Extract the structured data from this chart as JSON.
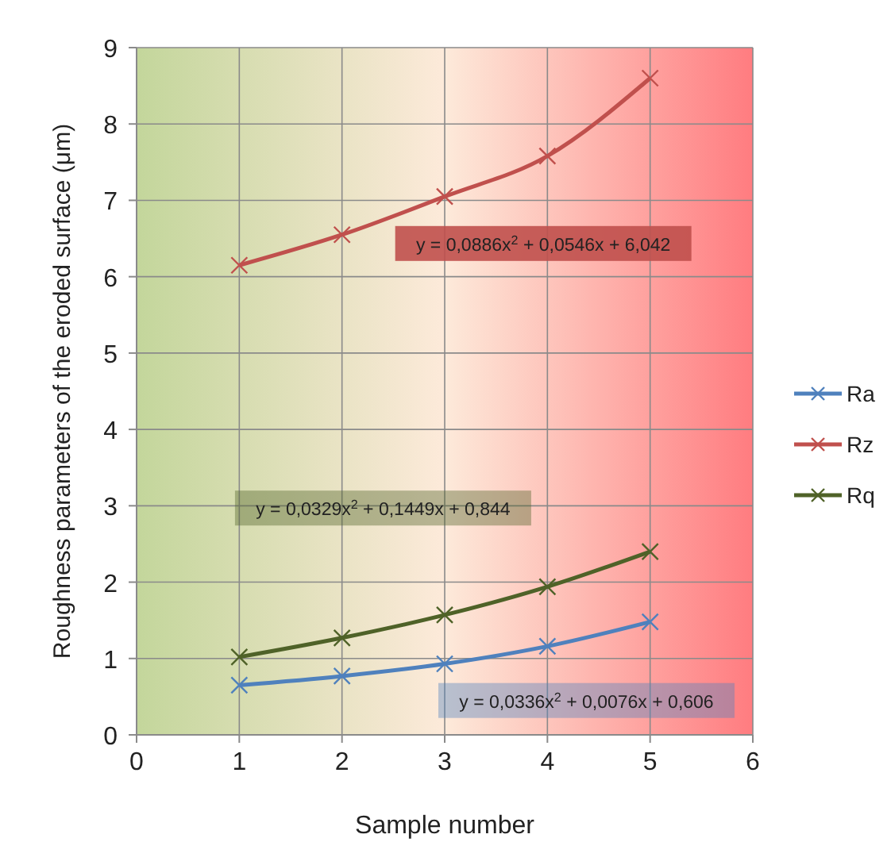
{
  "chart_data": {
    "type": "line",
    "xlabel": "Sample number",
    "ylabel": "Roughness parameters of the eroded surface (μm)",
    "x": [
      1,
      2,
      3,
      4,
      5
    ],
    "series": [
      {
        "name": "Ra",
        "color": "#4f81bd",
        "values": [
          0.65,
          0.77,
          0.93,
          1.16,
          1.48
        ]
      },
      {
        "name": "Rz",
        "color": "#c0504d",
        "values": [
          6.15,
          6.55,
          7.05,
          7.58,
          8.6
        ]
      },
      {
        "name": "Rq",
        "color": "#4f6228",
        "values": [
          1.02,
          1.27,
          1.57,
          1.94,
          2.4
        ]
      }
    ],
    "annotations": [
      "y = 0,0336x$^{2}$ + 0,0076x + 0,606",
      "y = 0,0886x$^{2}$ + 0,0546x + 6,042",
      "y = 0,0329x$^{2}$ + 0,1449x + 0,844"
    ],
    "xlim": [
      0,
      6
    ],
    "xticks": [
      0,
      1,
      2,
      3,
      4,
      5,
      6
    ],
    "ylim": [
      0,
      9
    ],
    "yticks": [
      0,
      1,
      2,
      3,
      4,
      5,
      6,
      7,
      8,
      9
    ],
    "grid": true,
    "legend": "right",
    "marker": "cross",
    "line_style": "solid"
  }
}
